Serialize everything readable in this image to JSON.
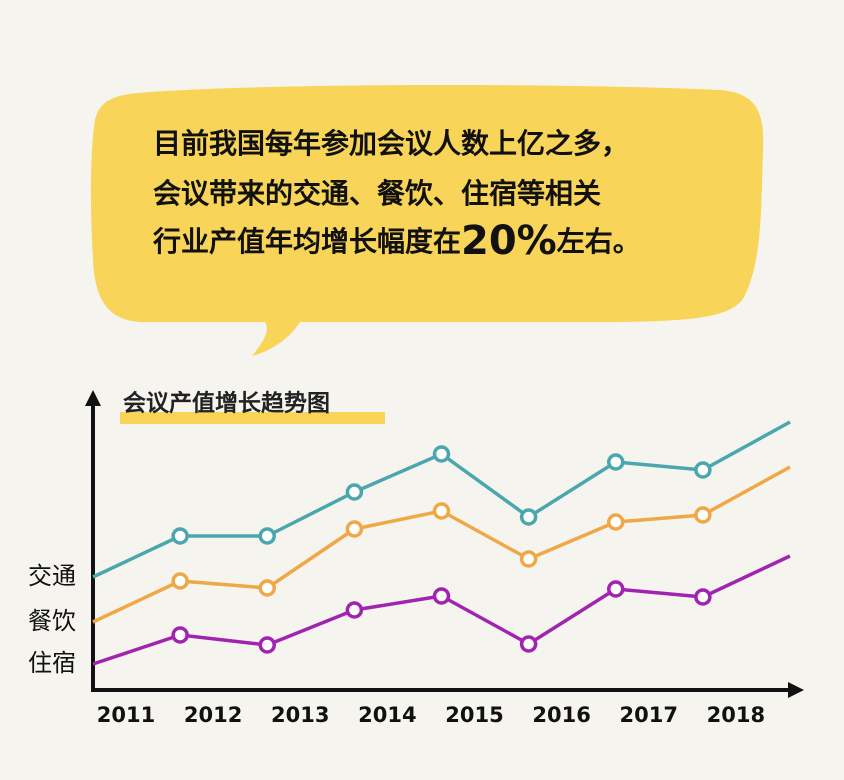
{
  "bubble": {
    "lines": [
      [
        "目前我国每年参加会议人数上亿之多，"
      ],
      [
        "会议带来的交通、餐饮、住宿等相关"
      ],
      [
        "行业产值年均增长幅度在",
        "20%",
        "左右。"
      ]
    ]
  },
  "chart_data": {
    "type": "line",
    "title": "会议产值增长趋势图",
    "categories": [
      "2011",
      "2012",
      "2013",
      "2014",
      "2015",
      "2016",
      "2017",
      "2018",
      null
    ],
    "ylim": [
      0,
      300
    ],
    "series": [
      {
        "name": "交通",
        "color": "#4ba7ae",
        "values": [
          113,
          154,
          154,
          198,
          236,
          173,
          228,
          220,
          268
        ]
      },
      {
        "name": "餐饮",
        "color": "#f0a745",
        "values": [
          68,
          109,
          102,
          161,
          179,
          131,
          168,
          175,
          223
        ]
      },
      {
        "name": "住宿",
        "color": "#a124b1",
        "values": [
          26,
          55,
          45,
          80,
          94,
          46,
          101,
          93,
          134
        ]
      }
    ]
  }
}
